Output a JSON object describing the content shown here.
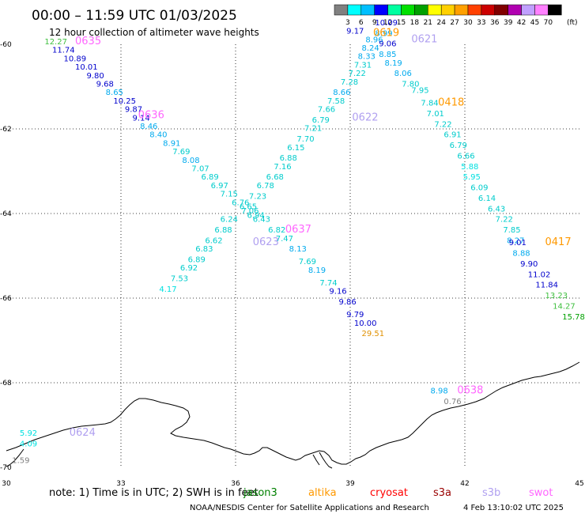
{
  "title": "00:00 – 11:59 UTC 01/03/2025",
  "subtitle": "12 hour collection of altimeter wave heights",
  "unit": "(ft)",
  "scale": {
    "labels": [
      "3",
      "6",
      "9",
      "12",
      "15",
      "18",
      "21",
      "24",
      "27",
      "30",
      "33",
      "36",
      "39",
      "42",
      "45",
      "70"
    ],
    "colors": [
      "#808080",
      "#00ffff",
      "#00bfff",
      "#0000ff",
      "#00ffa0",
      "#00e000",
      "#00a000",
      "#ffff00",
      "#ffd000",
      "#ffa000",
      "#ff4000",
      "#cc0000",
      "#800000",
      "#b000b0",
      "#c0a0ff",
      "#ff80ff",
      "#000000"
    ]
  },
  "lat_labels": [
    "-60",
    "-62",
    "-64",
    "-66",
    "-68",
    "-70"
  ],
  "lon_labels": [
    "30",
    "33",
    "36",
    "39",
    "42",
    "45"
  ],
  "tracks": [
    {
      "id": "0635",
      "color": "#ff66ff"
    },
    {
      "id": "0636",
      "color": "#ff66ff"
    },
    {
      "id": "0637",
      "color": "#ff66ff"
    },
    {
      "id": "0638",
      "color": "#ff66ff"
    },
    {
      "id": "0619",
      "color": "#ff9900"
    },
    {
      "id": "0418",
      "color": "#ff9900"
    },
    {
      "id": "0417",
      "color": "#ff9900"
    },
    {
      "id": "0621",
      "color": "#b0a0f0"
    },
    {
      "id": "0622",
      "color": "#b0a0f0"
    },
    {
      "id": "0623",
      "color": "#b0a0f0"
    },
    {
      "id": "0624",
      "color": "#b0a0f0"
    }
  ],
  "readings": [
    {
      "t": "12.27",
      "lat": -60.0,
      "lon": 31.0,
      "c": "#40c040"
    },
    {
      "t": "11.74",
      "lat": -60.2,
      "lon": 31.2,
      "c": "#0000cc"
    },
    {
      "t": "10.89",
      "lat": -60.4,
      "lon": 31.5,
      "c": "#0000cc"
    },
    {
      "t": "10.01",
      "lat": -60.6,
      "lon": 31.8,
      "c": "#0000cc"
    },
    {
      "t": "9.80",
      "lat": -60.8,
      "lon": 32.1,
      "c": "#0000cc"
    },
    {
      "t": "9.68",
      "lat": -61.0,
      "lon": 32.35,
      "c": "#0000cc"
    },
    {
      "t": "8.65",
      "lat": -61.2,
      "lon": 32.6,
      "c": "#00aaee"
    },
    {
      "t": "10.25",
      "lat": -61.4,
      "lon": 32.8,
      "c": "#0000cc"
    },
    {
      "t": "9.87",
      "lat": -61.6,
      "lon": 33.1,
      "c": "#0000cc"
    },
    {
      "t": "9.14",
      "lat": -61.8,
      "lon": 33.3,
      "c": "#0000cc"
    },
    {
      "t": "8.46",
      "lat": -62.0,
      "lon": 33.5,
      "c": "#00aaee"
    },
    {
      "t": "8.40",
      "lat": -62.2,
      "lon": 33.75,
      "c": "#00aaee"
    },
    {
      "t": "8.91",
      "lat": -62.4,
      "lon": 34.1,
      "c": "#00aaee"
    },
    {
      "t": "7.69",
      "lat": -62.6,
      "lon": 34.35,
      "c": "#00cccc"
    },
    {
      "t": "8.08",
      "lat": -62.8,
      "lon": 34.6,
      "c": "#00aaee"
    },
    {
      "t": "7.07",
      "lat": -63.0,
      "lon": 34.85,
      "c": "#00cccc"
    },
    {
      "t": "6.89",
      "lat": -63.2,
      "lon": 35.1,
      "c": "#00cccc"
    },
    {
      "t": "6.97",
      "lat": -63.4,
      "lon": 35.35,
      "c": "#00cccc"
    },
    {
      "t": "7.15",
      "lat": -63.6,
      "lon": 35.6,
      "c": "#00cccc"
    },
    {
      "t": "6.76",
      "lat": -63.8,
      "lon": 35.9,
      "c": "#00cccc"
    },
    {
      "t": "7.06",
      "lat": -64.0,
      "lon": 36.15,
      "c": "#00cccc"
    },
    {
      "t": "6.94",
      "lat": -64.1,
      "lon": 36.3,
      "c": "#00cccc"
    },
    {
      "t": "6.43",
      "lat": -64.2,
      "lon": 36.45,
      "c": "#00cccc"
    },
    {
      "t": "6.82",
      "lat": -64.45,
      "lon": 36.85,
      "c": "#00cccc"
    },
    {
      "t": "7.47",
      "lat": -64.65,
      "lon": 37.05,
      "c": "#00cccc"
    },
    {
      "t": "8.13",
      "lat": -64.9,
      "lon": 37.4,
      "c": "#00aaee"
    },
    {
      "t": "7.69",
      "lat": -65.2,
      "lon": 37.65,
      "c": "#00cccc"
    },
    {
      "t": "8.19",
      "lat": -65.4,
      "lon": 37.9,
      "c": "#00aaee"
    },
    {
      "t": "7.74",
      "lat": -65.7,
      "lon": 38.2,
      "c": "#00cccc"
    },
    {
      "t": "9.16",
      "lat": -65.9,
      "lon": 38.45,
      "c": "#0000cc"
    },
    {
      "t": "9.86",
      "lat": -66.15,
      "lon": 38.7,
      "c": "#0000cc"
    },
    {
      "t": "9.79",
      "lat": -66.45,
      "lon": 38.9,
      "c": "#0000cc"
    },
    {
      "t": "10.00",
      "lat": -66.65,
      "lon": 39.1,
      "c": "#0000cc"
    },
    {
      "t": "29.51",
      "lat": -66.9,
      "lon": 39.3,
      "c": "#e09000"
    },
    {
      "t": "4.17",
      "lat": -65.85,
      "lon": 34.0,
      "c": "#00e0e0"
    },
    {
      "t": "7.53",
      "lat": -65.6,
      "lon": 34.3,
      "c": "#00cccc"
    },
    {
      "t": "6.92",
      "lat": -65.35,
      "lon": 34.55,
      "c": "#00cccc"
    },
    {
      "t": "6.89",
      "lat": -65.15,
      "lon": 34.75,
      "c": "#00cccc"
    },
    {
      "t": "6.83",
      "lat": -64.9,
      "lon": 34.95,
      "c": "#00cccc"
    },
    {
      "t": "6.62",
      "lat": -64.7,
      "lon": 35.2,
      "c": "#00cccc"
    },
    {
      "t": "6.88",
      "lat": -64.45,
      "lon": 35.45,
      "c": "#00cccc"
    },
    {
      "t": "6.24",
      "lat": -64.2,
      "lon": 35.6,
      "c": "#00cccc"
    },
    {
      "t": "6.65",
      "lat": -63.9,
      "lon": 36.1,
      "c": "#00cccc"
    },
    {
      "t": "7.23",
      "lat": -63.65,
      "lon": 36.35,
      "c": "#00cccc"
    },
    {
      "t": "6.78",
      "lat": -63.4,
      "lon": 36.55,
      "c": "#00cccc"
    },
    {
      "t": "6.68",
      "lat": -63.2,
      "lon": 36.8,
      "c": "#00cccc"
    },
    {
      "t": "7.16",
      "lat": -62.95,
      "lon": 37.0,
      "c": "#00cccc"
    },
    {
      "t": "6.88",
      "lat": -62.75,
      "lon": 37.15,
      "c": "#00cccc"
    },
    {
      "t": "6.15",
      "lat": -62.5,
      "lon": 37.35,
      "c": "#00cccc"
    },
    {
      "t": "7.70",
      "lat": -62.3,
      "lon": 37.6,
      "c": "#00cccc"
    },
    {
      "t": "7.21",
      "lat": -62.05,
      "lon": 37.8,
      "c": "#00cccc"
    },
    {
      "t": "6.79",
      "lat": -61.85,
      "lon": 38.0,
      "c": "#00cccc"
    },
    {
      "t": "7.66",
      "lat": -61.6,
      "lon": 38.15,
      "c": "#00cccc"
    },
    {
      "t": "7.58",
      "lat": -61.4,
      "lon": 38.4,
      "c": "#00cccc"
    },
    {
      "t": "8.66",
      "lat": -61.2,
      "lon": 38.55,
      "c": "#00aaee"
    },
    {
      "t": "7.28",
      "lat": -60.95,
      "lon": 38.75,
      "c": "#00cccc"
    },
    {
      "t": "7.22",
      "lat": -60.75,
      "lon": 38.95,
      "c": "#00cccc"
    },
    {
      "t": "7.31",
      "lat": -60.55,
      "lon": 39.1,
      "c": "#00cccc"
    },
    {
      "t": "8.33",
      "lat": -60.35,
      "lon": 39.2,
      "c": "#00aaee"
    },
    {
      "t": "8.24",
      "lat": -60.15,
      "lon": 39.3,
      "c": "#00aaee"
    },
    {
      "t": "8.96",
      "lat": -59.95,
      "lon": 39.4,
      "c": "#00aaee"
    },
    {
      "t": "9.17",
      "lat": -59.75,
      "lon": 38.9,
      "c": "#0000cc"
    },
    {
      "t": "10.09",
      "lat": -59.55,
      "lon": 39.65,
      "c": "#0000cc"
    },
    {
      "t": "8.99",
      "lat": -59.8,
      "lon": 39.65,
      "c": "#00aaee"
    },
    {
      "t": "9.06",
      "lat": -60.05,
      "lon": 39.75,
      "c": "#0000cc"
    },
    {
      "t": "8.85",
      "lat": -60.3,
      "lon": 39.75,
      "c": "#00aaee"
    },
    {
      "t": "8.19",
      "lat": -60.5,
      "lon": 39.9,
      "c": "#00aaee"
    },
    {
      "t": "8.06",
      "lat": -60.75,
      "lon": 40.15,
      "c": "#00aaee"
    },
    {
      "t": "7.80",
      "lat": -61.0,
      "lon": 40.35,
      "c": "#00cccc"
    },
    {
      "t": "7.95",
      "lat": -61.15,
      "lon": 40.6,
      "c": "#00cccc"
    },
    {
      "t": "7.84",
      "lat": -61.45,
      "lon": 40.85,
      "c": "#00cccc"
    },
    {
      "t": "7.01",
      "lat": -61.7,
      "lon": 41.0,
      "c": "#00cccc"
    },
    {
      "t": "7.22",
      "lat": -61.95,
      "lon": 41.2,
      "c": "#00cccc"
    },
    {
      "t": "6.91",
      "lat": -62.2,
      "lon": 41.45,
      "c": "#00cccc"
    },
    {
      "t": "6.79",
      "lat": -62.45,
      "lon": 41.6,
      "c": "#00cccc"
    },
    {
      "t": "6.66",
      "lat": -62.7,
      "lon": 41.8,
      "c": "#00cccc"
    },
    {
      "t": "5.88",
      "lat": -62.95,
      "lon": 41.9,
      "c": "#00e0e0"
    },
    {
      "t": "5.95",
      "lat": -63.2,
      "lon": 41.95,
      "c": "#00e0e0"
    },
    {
      "t": "6.09",
      "lat": -63.45,
      "lon": 42.15,
      "c": "#00cccc"
    },
    {
      "t": "6.14",
      "lat": -63.7,
      "lon": 42.35,
      "c": "#00cccc"
    },
    {
      "t": "6.43",
      "lat": -63.95,
      "lon": 42.6,
      "c": "#00cccc"
    },
    {
      "t": "7.22",
      "lat": -64.2,
      "lon": 42.8,
      "c": "#00cccc"
    },
    {
      "t": "7.85",
      "lat": -64.45,
      "lon": 43.0,
      "c": "#00cccc"
    },
    {
      "t": "8.27",
      "lat": -64.7,
      "lon": 43.1,
      "c": "#00aaee"
    },
    {
      "t": "9.01",
      "lat": -64.75,
      "lon": 43.15,
      "c": "#0000cc"
    },
    {
      "t": "8.88",
      "lat": -65.0,
      "lon": 43.25,
      "c": "#00aaee"
    },
    {
      "t": "9.90",
      "lat": -65.25,
      "lon": 43.45,
      "c": "#0000cc"
    },
    {
      "t": "11.02",
      "lat": -65.5,
      "lon": 43.65,
      "c": "#0000cc"
    },
    {
      "t": "11.84",
      "lat": -65.75,
      "lon": 43.85,
      "c": "#0000cc"
    },
    {
      "t": "13.23",
      "lat": -66.0,
      "lon": 44.1,
      "c": "#40c040"
    },
    {
      "t": "14.27",
      "lat": -66.25,
      "lon": 44.3,
      "c": "#40c040"
    },
    {
      "t": "15.78",
      "lat": -66.5,
      "lon": 44.55,
      "c": "#00a000"
    },
    {
      "t": "8.98",
      "lat": -68.25,
      "lon": 41.1,
      "c": "#00aaee"
    },
    {
      "t": "0.76",
      "lat": -68.5,
      "lon": 41.45,
      "c": "#808080"
    },
    {
      "t": "5.92",
      "lat": -69.25,
      "lon": 30.35,
      "c": "#00e0e0"
    },
    {
      "t": "4.09",
      "lat": -69.5,
      "lon": 30.35,
      "c": "#00e0e0"
    },
    {
      "t": "1.59",
      "lat": -69.9,
      "lon": 30.15,
      "c": "#808080"
    }
  ],
  "pass_labels": [
    {
      "id": "0635",
      "lat": -60.0,
      "lon": 31.8,
      "c": "#ff66ff"
    },
    {
      "id": "0636",
      "lat": -61.75,
      "lon": 33.45,
      "c": "#ff66ff"
    },
    {
      "id": "0637",
      "lat": -64.45,
      "lon": 37.3,
      "c": "#ff66ff"
    },
    {
      "id": "0638",
      "lat": -68.25,
      "lon": 41.8,
      "c": "#ff66ff"
    },
    {
      "id": "0619",
      "lat": -59.8,
      "lon": 39.6,
      "c": "#ff9900"
    },
    {
      "id": "0418",
      "lat": -61.45,
      "lon": 41.3,
      "c": "#ff9900"
    },
    {
      "id": "0417",
      "lat": -64.75,
      "lon": 44.1,
      "c": "#ff9900"
    },
    {
      "id": "0621",
      "lat": -59.95,
      "lon": 40.6,
      "c": "#b0a0f0"
    },
    {
      "id": "0622",
      "lat": -61.8,
      "lon": 39.05,
      "c": "#b0a0f0"
    },
    {
      "id": "0623",
      "lat": -64.75,
      "lon": 36.45,
      "c": "#b0a0f0"
    },
    {
      "id": "0624",
      "lat": -69.25,
      "lon": 31.65,
      "c": "#b0a0f0"
    }
  ],
  "footer": {
    "note": "note:  1) Time is in UTC; 2) SWH is in feet",
    "satellites": [
      {
        "name": "jason3",
        "color": "#008000"
      },
      {
        "name": "altika",
        "color": "#ff9900"
      },
      {
        "name": "cryosat",
        "color": "#ff0000"
      },
      {
        "name": "s3a",
        "color": "#990000"
      },
      {
        "name": "s3b",
        "color": "#b0a0f0"
      },
      {
        "name": "swot",
        "color": "#ff66ff"
      }
    ],
    "credit": "NOAA/NESDIS Center for Satellite Applications and Research",
    "timestamp": "4 Feb 13:10:02 UTC 2025"
  }
}
